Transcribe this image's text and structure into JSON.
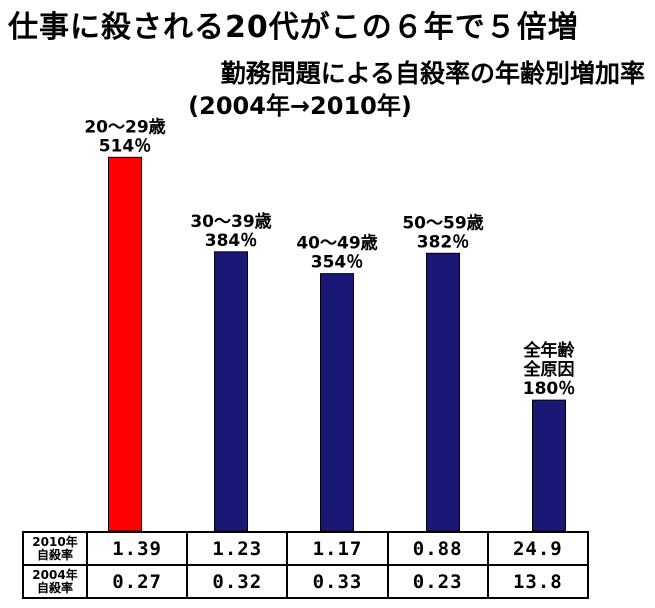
{
  "title": "仕事に殺される20代がこの６年で５倍増",
  "subtitle": "勤務問題による自殺率の年齢別増加率",
  "subtitle_period": "(2004年→2010年)",
  "colors": {
    "highlight_bar": "#ff0000",
    "bar": "#1a1875",
    "bar_border": "#000000"
  },
  "chart_data": {
    "type": "bar",
    "title": "勤務問題による自殺率の年齢別増加率",
    "subtitle": "(2004年→2010年)",
    "categories": [
      "20～29歳",
      "30～39歳",
      "40～49歳",
      "50～59歳",
      "全年齢全原因"
    ],
    "category_label_lines": [
      [
        "20～29歳"
      ],
      [
        "30～39歳"
      ],
      [
        "40～49歳"
      ],
      [
        "50～59歳"
      ],
      [
        "全年齢",
        "全原因"
      ]
    ],
    "values": [
      514,
      384,
      354,
      382,
      180
    ],
    "value_labels": [
      "514％",
      "384％",
      "354％",
      "382％",
      "180％"
    ],
    "unit": "%",
    "ylim": [
      0,
      600
    ],
    "highlight_index": 0,
    "axes_shown": false,
    "grid": false,
    "legend": "none"
  },
  "table": {
    "rows": [
      {
        "label_line1": "2010年",
        "label_line2": "自殺率",
        "values": [
          "1.39",
          "1.23",
          "1.17",
          "0.88",
          "24.9"
        ]
      },
      {
        "label_line1": "2004年",
        "label_line2": "自殺率",
        "values": [
          "0.27",
          "0.32",
          "0.33",
          "0.23",
          "13.8"
        ]
      }
    ]
  }
}
